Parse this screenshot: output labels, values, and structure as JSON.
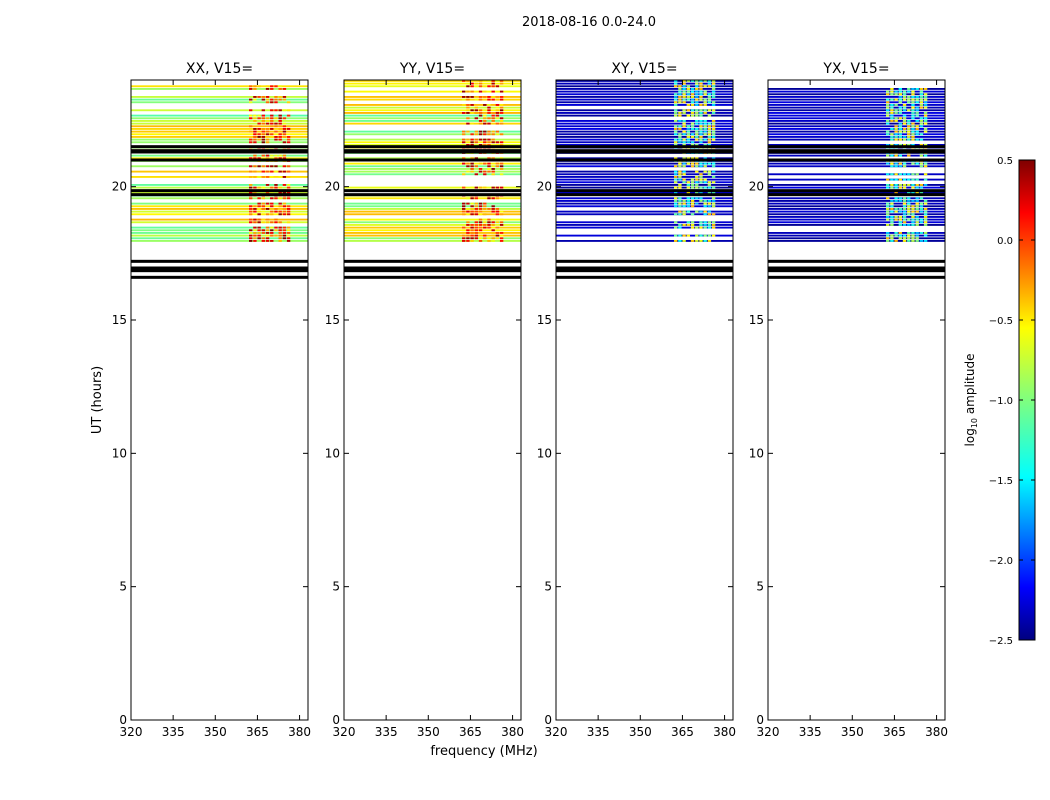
{
  "figure": {
    "suptitle": "2018-08-16 0.0-24.0",
    "ylabel": "UT (hours)",
    "xlabel": "frequency (MHz)"
  },
  "chart_data": {
    "type": "heatmap",
    "title": "2018-08-16 0.0-24.0",
    "xlabel": "frequency (MHz)",
    "ylabel": "UT (hours)",
    "xlim": [
      320,
      383
    ],
    "ylim": [
      0,
      24
    ],
    "xticks": [
      320,
      335,
      350,
      365,
      380
    ],
    "yticks": [
      0,
      5,
      10,
      15,
      20
    ],
    "panels": [
      {
        "title": "XX, V15=",
        "pol": "XX",
        "base_level": "mid"
      },
      {
        "title": "YY, V15=",
        "pol": "YY",
        "base_level": "mid"
      },
      {
        "title": "XY, V15=",
        "pol": "XY",
        "base_level": "low"
      },
      {
        "title": "YX, V15=",
        "pol": "YX",
        "base_level": "low"
      }
    ],
    "data_extent_hours": [
      17.9,
      24.0
    ],
    "strong_band_mhz": [
      362,
      377
    ],
    "dark_lines_hours": [
      16.6,
      16.85,
      16.95,
      17.2,
      19.7,
      19.85,
      21.0,
      21.3,
      21.35,
      21.5
    ],
    "colorbar": {
      "label_prefix": "log",
      "label_sub": "10",
      "label_suffix": " amplitude",
      "range": [
        -2.5,
        0.5
      ],
      "ticks": [
        "0.5",
        "0.0",
        "−0.5",
        "−1.0",
        "−1.5",
        "−2.0",
        "−2.5"
      ],
      "tick_values": [
        0.5,
        0.0,
        -0.5,
        -1.0,
        -1.5,
        -2.0,
        -2.5
      ],
      "colormap": "jet"
    }
  }
}
